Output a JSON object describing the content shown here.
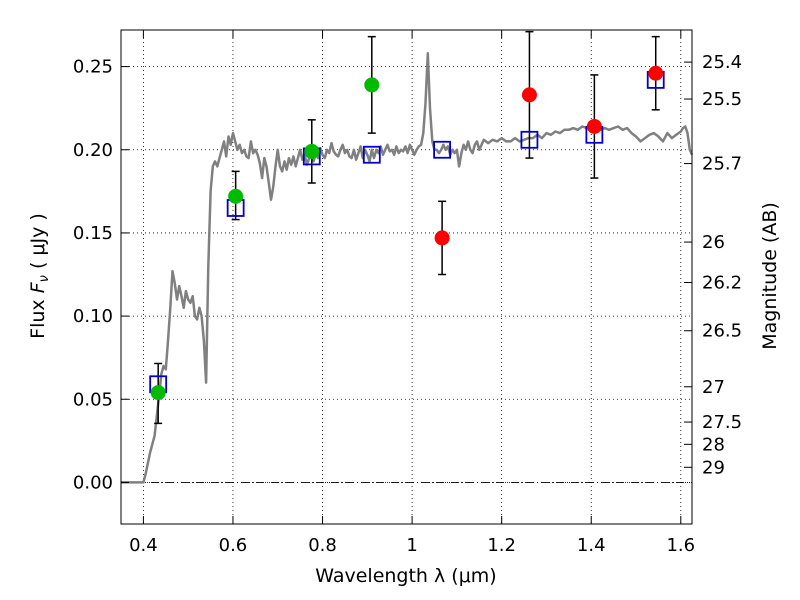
{
  "chart_data": {
    "type": "scatter",
    "xlabel": "Wavelength  λ (μm)",
    "ylabel": "Flux  F_ν  ( μJy )",
    "ylabel_right": "Magnitude (AB)",
    "xlim": [
      0.35,
      1.625
    ],
    "ylim": [
      -0.025,
      0.272
    ],
    "x_ticks": [
      {
        "value": 0.4,
        "label": "0.4"
      },
      {
        "value": 0.6,
        "label": "0.6"
      },
      {
        "value": 0.8,
        "label": "0.8"
      },
      {
        "value": 1.0,
        "label": "1"
      },
      {
        "value": 1.2,
        "label": "1.2"
      },
      {
        "value": 1.4,
        "label": "1.4"
      },
      {
        "value": 1.6,
        "label": "1.6"
      }
    ],
    "y_ticks": [
      {
        "value": 0.0,
        "label": "0.00"
      },
      {
        "value": 0.05,
        "label": "0.05"
      },
      {
        "value": 0.1,
        "label": "0.10"
      },
      {
        "value": 0.15,
        "label": "0.15"
      },
      {
        "value": 0.2,
        "label": "0.20"
      },
      {
        "value": 0.25,
        "label": "0.25"
      }
    ],
    "right_ticks": [
      {
        "flux": 0.2527,
        "label": "25.4"
      },
      {
        "flux": 0.2305,
        "label": "25.5"
      },
      {
        "flux": 0.1917,
        "label": "25.7"
      },
      {
        "flux": 0.1445,
        "label": "26"
      },
      {
        "flux": 0.1202,
        "label": "26.2"
      },
      {
        "flux": 0.0912,
        "label": "26.5"
      },
      {
        "flux": 0.0575,
        "label": "27"
      },
      {
        "flux": 0.0363,
        "label": "27.5"
      },
      {
        "flux": 0.0229,
        "label": "28"
      },
      {
        "flux": 0.0091,
        "label": "29"
      }
    ],
    "grid": true,
    "colors": {
      "model": "#808080",
      "optical": "#00bb00",
      "nir": "#ff0000",
      "synthetic": "#0000cc",
      "errorbar": "#000000"
    },
    "model_spectrum": [
      [
        0.35,
        0.0
      ],
      [
        0.4,
        0.0
      ],
      [
        0.405,
        0.005
      ],
      [
        0.415,
        0.018
      ],
      [
        0.425,
        0.028
      ],
      [
        0.43,
        0.04
      ],
      [
        0.435,
        0.052
      ],
      [
        0.44,
        0.065
      ],
      [
        0.445,
        0.07
      ],
      [
        0.45,
        0.068
      ],
      [
        0.455,
        0.085
      ],
      [
        0.46,
        0.105
      ],
      [
        0.465,
        0.127
      ],
      [
        0.47,
        0.12
      ],
      [
        0.475,
        0.11
      ],
      [
        0.48,
        0.118
      ],
      [
        0.485,
        0.112
      ],
      [
        0.49,
        0.105
      ],
      [
        0.495,
        0.115
      ],
      [
        0.5,
        0.11
      ],
      [
        0.505,
        0.108
      ],
      [
        0.51,
        0.112
      ],
      [
        0.515,
        0.1
      ],
      [
        0.52,
        0.098
      ],
      [
        0.525,
        0.105
      ],
      [
        0.53,
        0.1
      ],
      [
        0.535,
        0.085
      ],
      [
        0.54,
        0.06
      ],
      [
        0.545,
        0.13
      ],
      [
        0.55,
        0.175
      ],
      [
        0.555,
        0.19
      ],
      [
        0.56,
        0.193
      ],
      [
        0.565,
        0.19
      ],
      [
        0.57,
        0.195
      ],
      [
        0.575,
        0.2
      ],
      [
        0.58,
        0.205
      ],
      [
        0.585,
        0.196
      ],
      [
        0.59,
        0.208
      ],
      [
        0.595,
        0.203
      ],
      [
        0.6,
        0.21
      ],
      [
        0.605,
        0.205
      ],
      [
        0.61,
        0.2
      ],
      [
        0.615,
        0.203
      ],
      [
        0.62,
        0.198
      ],
      [
        0.625,
        0.2
      ],
      [
        0.63,
        0.196
      ],
      [
        0.635,
        0.195
      ],
      [
        0.64,
        0.205
      ],
      [
        0.645,
        0.198
      ],
      [
        0.65,
        0.2
      ],
      [
        0.655,
        0.197
      ],
      [
        0.66,
        0.192
      ],
      [
        0.665,
        0.183
      ],
      [
        0.67,
        0.195
      ],
      [
        0.675,
        0.19
      ],
      [
        0.68,
        0.18
      ],
      [
        0.685,
        0.17
      ],
      [
        0.69,
        0.178
      ],
      [
        0.695,
        0.19
      ],
      [
        0.7,
        0.2
      ],
      [
        0.705,
        0.19
      ],
      [
        0.71,
        0.187
      ],
      [
        0.715,
        0.193
      ],
      [
        0.72,
        0.188
      ],
      [
        0.725,
        0.195
      ],
      [
        0.73,
        0.191
      ],
      [
        0.735,
        0.196
      ],
      [
        0.74,
        0.19
      ],
      [
        0.745,
        0.195
      ],
      [
        0.75,
        0.2
      ],
      [
        0.755,
        0.194
      ],
      [
        0.76,
        0.197
      ],
      [
        0.765,
        0.191
      ],
      [
        0.77,
        0.195
      ],
      [
        0.775,
        0.2
      ],
      [
        0.78,
        0.193
      ],
      [
        0.785,
        0.198
      ],
      [
        0.79,
        0.195
      ],
      [
        0.795,
        0.201
      ],
      [
        0.8,
        0.197
      ],
      [
        0.805,
        0.195
      ],
      [
        0.81,
        0.2
      ],
      [
        0.815,
        0.198
      ],
      [
        0.82,
        0.204
      ],
      [
        0.825,
        0.199
      ],
      [
        0.83,
        0.197
      ],
      [
        0.835,
        0.196
      ],
      [
        0.84,
        0.2
      ],
      [
        0.845,
        0.203
      ],
      [
        0.85,
        0.198
      ],
      [
        0.855,
        0.2
      ],
      [
        0.86,
        0.196
      ],
      [
        0.865,
        0.195
      ],
      [
        0.87,
        0.2
      ],
      [
        0.875,
        0.194
      ],
      [
        0.88,
        0.198
      ],
      [
        0.885,
        0.202
      ],
      [
        0.89,
        0.195
      ],
      [
        0.895,
        0.2
      ],
      [
        0.9,
        0.197
      ],
      [
        0.905,
        0.193
      ],
      [
        0.91,
        0.2
      ],
      [
        0.915,
        0.195
      ],
      [
        0.92,
        0.2
      ],
      [
        0.925,
        0.198
      ],
      [
        0.93,
        0.202
      ],
      [
        0.935,
        0.197
      ],
      [
        0.94,
        0.2
      ],
      [
        0.945,
        0.203
      ],
      [
        0.95,
        0.199
      ],
      [
        0.955,
        0.2
      ],
      [
        0.96,
        0.197
      ],
      [
        0.965,
        0.202
      ],
      [
        0.97,
        0.198
      ],
      [
        0.975,
        0.2
      ],
      [
        0.98,
        0.199
      ],
      [
        0.985,
        0.202
      ],
      [
        0.99,
        0.198
      ],
      [
        0.995,
        0.203
      ],
      [
        1.0,
        0.2
      ],
      [
        1.005,
        0.197
      ],
      [
        1.01,
        0.2
      ],
      [
        1.015,
        0.202
      ],
      [
        1.02,
        0.203
      ],
      [
        1.025,
        0.21
      ],
      [
        1.03,
        0.228
      ],
      [
        1.035,
        0.258
      ],
      [
        1.04,
        0.225
      ],
      [
        1.045,
        0.205
      ],
      [
        1.05,
        0.2
      ],
      [
        1.055,
        0.2
      ],
      [
        1.06,
        0.198
      ],
      [
        1.065,
        0.2
      ],
      [
        1.07,
        0.203
      ],
      [
        1.075,
        0.2
      ],
      [
        1.08,
        0.202
      ],
      [
        1.085,
        0.197
      ],
      [
        1.09,
        0.2
      ],
      [
        1.095,
        0.198
      ],
      [
        1.1,
        0.2
      ],
      [
        1.105,
        0.19
      ],
      [
        1.11,
        0.198
      ],
      [
        1.115,
        0.203
      ],
      [
        1.12,
        0.2
      ],
      [
        1.125,
        0.205
      ],
      [
        1.13,
        0.2
      ],
      [
        1.135,
        0.198
      ],
      [
        1.14,
        0.203
      ],
      [
        1.145,
        0.205
      ],
      [
        1.15,
        0.2
      ],
      [
        1.16,
        0.206
      ],
      [
        1.17,
        0.204
      ],
      [
        1.18,
        0.206
      ],
      [
        1.19,
        0.205
      ],
      [
        1.2,
        0.207
      ],
      [
        1.21,
        0.205
      ],
      [
        1.22,
        0.205
      ],
      [
        1.23,
        0.207
      ],
      [
        1.24,
        0.205
      ],
      [
        1.25,
        0.206
      ],
      [
        1.26,
        0.207
      ],
      [
        1.27,
        0.207
      ],
      [
        1.28,
        0.209
      ],
      [
        1.29,
        0.207
      ],
      [
        1.3,
        0.21
      ],
      [
        1.31,
        0.209
      ],
      [
        1.32,
        0.211
      ],
      [
        1.33,
        0.21
      ],
      [
        1.34,
        0.212
      ],
      [
        1.35,
        0.212
      ],
      [
        1.36,
        0.213
      ],
      [
        1.37,
        0.212
      ],
      [
        1.38,
        0.214
      ],
      [
        1.39,
        0.213
      ],
      [
        1.4,
        0.213
      ],
      [
        1.41,
        0.213
      ],
      [
        1.42,
        0.212
      ],
      [
        1.43,
        0.213
      ],
      [
        1.44,
        0.212
      ],
      [
        1.45,
        0.213
      ],
      [
        1.46,
        0.214
      ],
      [
        1.47,
        0.212
      ],
      [
        1.48,
        0.213
      ],
      [
        1.49,
        0.21
      ],
      [
        1.5,
        0.208
      ],
      [
        1.51,
        0.205
      ],
      [
        1.52,
        0.207
      ],
      [
        1.53,
        0.209
      ],
      [
        1.54,
        0.21
      ],
      [
        1.55,
        0.208
      ],
      [
        1.56,
        0.205
      ],
      [
        1.57,
        0.21
      ],
      [
        1.58,
        0.207
      ],
      [
        1.59,
        0.209
      ],
      [
        1.6,
        0.211
      ],
      [
        1.605,
        0.213
      ],
      [
        1.61,
        0.214
      ],
      [
        1.615,
        0.21
      ],
      [
        1.62,
        0.2
      ],
      [
        1.625,
        0.197
      ]
    ],
    "series": [
      {
        "marker": "circle",
        "color": "#00bb00",
        "points": [
          {
            "x": 0.433,
            "y": 0.054,
            "err_low": 0.0355,
            "err_high": 0.0715
          },
          {
            "x": 0.606,
            "y": 0.172,
            "err_low": 0.158,
            "err_high": 0.187
          },
          {
            "x": 0.776,
            "y": 0.199,
            "err_low": 0.18,
            "err_high": 0.218
          },
          {
            "x": 0.91,
            "y": 0.239,
            "err_low": 0.21,
            "err_high": 0.268
          }
        ]
      },
      {
        "marker": "circle",
        "color": "#ff0000",
        "points": [
          {
            "x": 1.067,
            "y": 0.147,
            "err_low": 0.125,
            "err_high": 0.169
          },
          {
            "x": 1.262,
            "y": 0.233,
            "err_low": 0.195,
            "err_high": 0.271
          },
          {
            "x": 1.407,
            "y": 0.214,
            "err_low": 0.183,
            "err_high": 0.245
          },
          {
            "x": 1.544,
            "y": 0.246,
            "err_low": 0.224,
            "err_high": 0.268
          }
        ]
      },
      {
        "marker": "open-square",
        "color": "#0000cc",
        "points": [
          {
            "x": 0.433,
            "y": 0.059
          },
          {
            "x": 0.606,
            "y": 0.165
          },
          {
            "x": 0.776,
            "y": 0.196
          },
          {
            "x": 0.91,
            "y": 0.197
          },
          {
            "x": 1.067,
            "y": 0.2
          },
          {
            "x": 1.262,
            "y": 0.206
          },
          {
            "x": 1.407,
            "y": 0.209
          },
          {
            "x": 1.544,
            "y": 0.242
          }
        ]
      }
    ]
  }
}
